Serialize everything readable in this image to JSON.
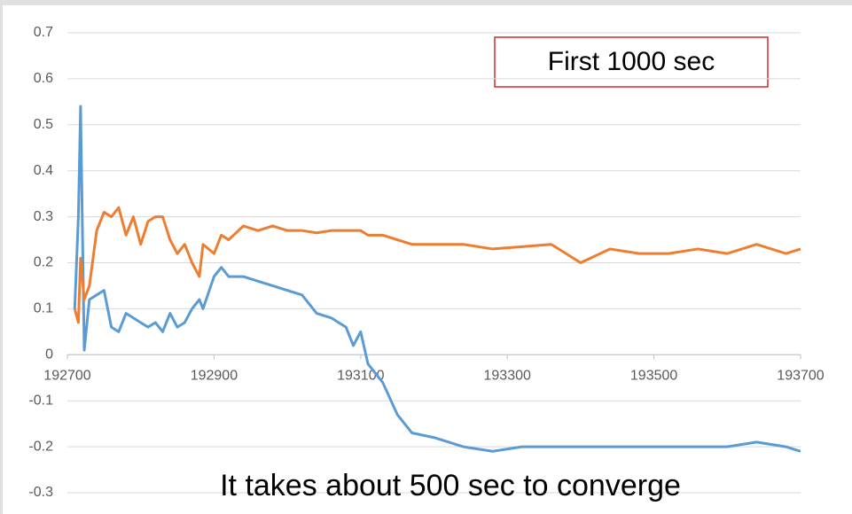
{
  "chart_data": {
    "type": "line",
    "annotations": [
      "First 1000 sec",
      "It takes about 500 sec to converge"
    ],
    "x": [
      192710,
      192715,
      192718,
      192723,
      192730,
      192740,
      192750,
      192760,
      192770,
      192780,
      192790,
      192800,
      192810,
      192820,
      192830,
      192840,
      192850,
      192860,
      192870,
      192880,
      192885,
      192900,
      192910,
      192920,
      192940,
      192960,
      192980,
      193000,
      193020,
      193040,
      193060,
      193080,
      193090,
      193100,
      193110,
      193130,
      193150,
      193170,
      193200,
      193240,
      193280,
      193320,
      193360,
      193400,
      193440,
      193480,
      193520,
      193560,
      193600,
      193640,
      193680,
      193700
    ],
    "series": [
      {
        "color": "#5b9bd5",
        "values": [
          0.1,
          0.3,
          0.54,
          0.01,
          0.12,
          0.13,
          0.14,
          0.06,
          0.05,
          0.09,
          0.08,
          0.07,
          0.06,
          0.07,
          0.05,
          0.09,
          0.06,
          0.07,
          0.1,
          0.12,
          0.1,
          0.17,
          0.19,
          0.17,
          0.17,
          0.16,
          0.15,
          0.14,
          0.13,
          0.09,
          0.08,
          0.06,
          0.02,
          0.05,
          -0.02,
          -0.06,
          -0.13,
          -0.17,
          -0.18,
          -0.2,
          -0.21,
          -0.2,
          -0.2,
          -0.2,
          -0.2,
          -0.2,
          -0.2,
          -0.2,
          -0.2,
          -0.19,
          -0.2,
          -0.21
        ]
      },
      {
        "color": "#ed7d31",
        "values": [
          0.1,
          0.07,
          0.21,
          0.12,
          0.15,
          0.27,
          0.31,
          0.3,
          0.32,
          0.26,
          0.3,
          0.24,
          0.29,
          0.3,
          0.3,
          0.25,
          0.22,
          0.24,
          0.2,
          0.17,
          0.24,
          0.22,
          0.26,
          0.25,
          0.28,
          0.27,
          0.28,
          0.27,
          0.27,
          0.265,
          0.27,
          0.27,
          0.27,
          0.27,
          0.26,
          0.26,
          0.25,
          0.24,
          0.24,
          0.24,
          0.23,
          0.235,
          0.24,
          0.2,
          0.23,
          0.22,
          0.22,
          0.23,
          0.22,
          0.24,
          0.22,
          0.23
        ]
      }
    ],
    "xlim": [
      192700,
      193700
    ],
    "xticks": [
      192700,
      192900,
      193100,
      193300,
      193500,
      193700
    ],
    "ylim": [
      -0.3,
      0.7
    ],
    "yticks": [
      -0.3,
      -0.2,
      -0.1,
      0,
      0.1,
      0.2,
      0.3,
      0.4,
      0.5,
      0.6,
      0.7
    ],
    "grid": true
  }
}
